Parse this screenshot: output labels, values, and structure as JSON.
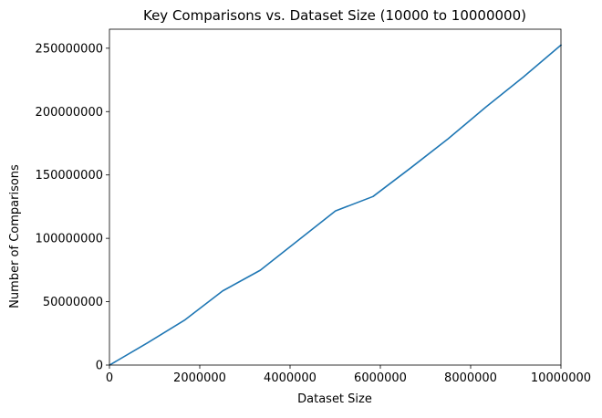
{
  "chart_data": {
    "type": "line",
    "title": "Key Comparisons vs. Dataset Size (10000 to 10000000)",
    "xlabel": "Dataset Size",
    "ylabel": "Number of Comparisons",
    "xlim": [
      0,
      10000000
    ],
    "ylim": [
      0,
      265000000
    ],
    "xticks": [
      0,
      2000000,
      4000000,
      6000000,
      8000000,
      10000000
    ],
    "xtick_labels": [
      "0",
      "2000000",
      "4000000",
      "6000000",
      "8000000",
      "10000000"
    ],
    "yticks": [
      0,
      50000000,
      100000000,
      150000000,
      200000000,
      250000000
    ],
    "ytick_labels": [
      "0",
      "50000000",
      "100000000",
      "150000000",
      "200000000",
      "250000000"
    ],
    "grid": false,
    "line_color": "#1f77b4",
    "series": [
      {
        "x": [
          10000,
          842500,
          1675000,
          2507500,
          3340000,
          4172500,
          5005000,
          5837500,
          6670000,
          7502500,
          8335000,
          9167500,
          10000000
        ],
        "y": [
          140000,
          17500000,
          35700000,
          58500000,
          74800000,
          98200000,
          121600000,
          133000000,
          155500000,
          178600000,
          203500000,
          227300000,
          252500000
        ]
      }
    ]
  }
}
